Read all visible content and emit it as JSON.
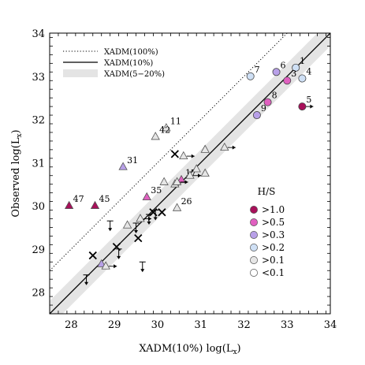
{
  "chart_data": {
    "type": "scatter",
    "title": "",
    "xlabel": "XADM(10%) log(L",
    "xlabel_sub": "x",
    "xlabel_end": ")",
    "ylabel": "Observed log(L",
    "ylabel_sub": "x",
    "ylabel_end": ")",
    "xlim": [
      27.5,
      34
    ],
    "ylim": [
      27.5,
      34
    ],
    "x_ticks": [
      28,
      29,
      30,
      31,
      32,
      33,
      34
    ],
    "y_ticks": [
      28,
      29,
      30,
      31,
      32,
      33,
      34
    ],
    "x_tick_labels": [
      "28",
      "29",
      "30",
      "31",
      "32",
      "33",
      "34"
    ],
    "y_tick_labels": [
      "28",
      "29",
      "30",
      "31",
      "32",
      "33",
      "34"
    ],
    "grid": false,
    "line_legend": {
      "placement": "top-left",
      "entries": [
        {
          "label": "XADM(100%)",
          "style": "dotted"
        },
        {
          "label": "XADM(10%)",
          "style": "solid"
        },
        {
          "label": "XADM(5−20%)",
          "style": "band"
        }
      ]
    },
    "color_legend": {
      "placement": "lower-right",
      "title": "H/S",
      "entries": [
        {
          "label": ">1.0",
          "color": "#a8105a"
        },
        {
          "label": ">0.5",
          "color": "#e060c0"
        },
        {
          "label": ">0.3",
          "color": "#b8a0e8"
        },
        {
          "label": ">0.2",
          "color": "#cfe0f5"
        },
        {
          "label": ">0.1",
          "color": "#e6e6e6"
        },
        {
          "label": "<0.1",
          "color": "#ffffff"
        }
      ]
    },
    "lines": [
      {
        "name": "XADM(100%)",
        "style": "dotted",
        "offset": 1.0
      },
      {
        "name": "XADM(10%)",
        "style": "solid",
        "offset": 0.0
      },
      {
        "name": "XADM(5−20%)",
        "style": "band",
        "offset_low": -0.3,
        "offset_high": 0.3
      }
    ],
    "points": [
      {
        "x": 33.2,
        "y": 33.2,
        "marker": "circle",
        "color": "#cfe0f5",
        "label": "1"
      },
      {
        "x": 32.75,
        "y": 33.1,
        "marker": "circle",
        "color": "#b8a0e8",
        "label": "6"
      },
      {
        "x": 33.35,
        "y": 32.95,
        "marker": "circle",
        "color": "#cfe0f5",
        "label": "4"
      },
      {
        "x": 33.0,
        "y": 32.9,
        "marker": "circle",
        "color": "#e060c0",
        "label": "3"
      },
      {
        "x": 32.15,
        "y": 33.0,
        "marker": "circle",
        "color": "#cfe0f5",
        "label": "7"
      },
      {
        "x": 32.55,
        "y": 32.4,
        "marker": "circle",
        "color": "#e060c0",
        "label": "8"
      },
      {
        "x": 32.3,
        "y": 32.1,
        "marker": "circle",
        "color": "#b8a0e8",
        "label": "9"
      },
      {
        "x": 33.35,
        "y": 32.3,
        "marker": "circle",
        "color": "#a8105a",
        "label": "5",
        "arrow": "right"
      },
      {
        "x": 30.2,
        "y": 31.8,
        "marker": "triangle",
        "color": "#e6e6e6",
        "label": "11"
      },
      {
        "x": 29.95,
        "y": 31.6,
        "marker": "triangle",
        "color": "#e6e6e6",
        "label": "42"
      },
      {
        "x": 29.2,
        "y": 30.9,
        "marker": "triangle",
        "color": "#b8a0e8",
        "label": "31"
      },
      {
        "x": 29.75,
        "y": 30.2,
        "marker": "triangle",
        "color": "#e060c0",
        "label": "35"
      },
      {
        "x": 30.55,
        "y": 30.6,
        "marker": "triangle",
        "color": "#e060c0",
        "label": "17"
      },
      {
        "x": 30.45,
        "y": 29.95,
        "marker": "triangle",
        "color": "#e6e6e6",
        "label": "26"
      },
      {
        "x": 27.95,
        "y": 30.0,
        "marker": "triangle",
        "color": "#a8105a",
        "label": "47"
      },
      {
        "x": 28.55,
        "y": 30.0,
        "marker": "triangle",
        "color": "#a8105a",
        "label": "45"
      },
      {
        "x": 31.55,
        "y": 31.35,
        "marker": "triangle",
        "color": "#e6e6e6",
        "arrow": "right"
      },
      {
        "x": 31.1,
        "y": 31.3,
        "marker": "triangle",
        "color": "#e6e6e6"
      },
      {
        "x": 30.6,
        "y": 31.15,
        "marker": "triangle",
        "color": "#e6e6e6",
        "arrow": "right"
      },
      {
        "x": 30.15,
        "y": 30.55,
        "marker": "triangle",
        "color": "#e6e6e6"
      },
      {
        "x": 30.4,
        "y": 30.5,
        "marker": "triangle",
        "color": "#e6e6e6"
      },
      {
        "x": 30.75,
        "y": 30.7,
        "marker": "triangle",
        "color": "#e6e6e6",
        "arrow": "right"
      },
      {
        "x": 30.9,
        "y": 30.85,
        "marker": "triangle",
        "color": "#e6e6e6"
      },
      {
        "x": 31.1,
        "y": 30.75,
        "marker": "triangle",
        "color": "#e6e6e6"
      },
      {
        "x": 30.45,
        "y": 30.55,
        "marker": "triangle",
        "color": "#e6e6e6",
        "arrow": "right"
      },
      {
        "x": 29.3,
        "y": 29.55,
        "marker": "triangle",
        "color": "#e6e6e6"
      },
      {
        "x": 29.6,
        "y": 29.7,
        "marker": "triangle",
        "color": "#e6e6e6",
        "arrow": "right"
      },
      {
        "x": 28.7,
        "y": 28.65,
        "marker": "triangle",
        "color": "#b8a0e8"
      },
      {
        "x": 28.8,
        "y": 28.6,
        "marker": "triangle",
        "color": "#e6e6e6",
        "arrow": "right"
      },
      {
        "x": 30.4,
        "y": 31.2,
        "marker": "x"
      },
      {
        "x": 30.1,
        "y": 29.85,
        "marker": "x"
      },
      {
        "x": 29.55,
        "y": 29.25,
        "marker": "x"
      },
      {
        "x": 29.05,
        "y": 29.05,
        "marker": "x"
      },
      {
        "x": 28.5,
        "y": 28.85,
        "marker": "x"
      },
      {
        "x": 29.9,
        "y": 29.85,
        "marker": "x"
      },
      {
        "x": 28.9,
        "y": 29.65,
        "marker": "limit"
      },
      {
        "x": 29.65,
        "y": 28.7,
        "marker": "limit"
      },
      {
        "x": 29.1,
        "y": 29.0,
        "marker": "limit"
      },
      {
        "x": 28.35,
        "y": 28.4,
        "marker": "limit"
      },
      {
        "x": 29.8,
        "y": 29.8,
        "marker": "limit"
      },
      {
        "x": 29.95,
        "y": 29.9,
        "marker": "limit"
      },
      {
        "x": 29.5,
        "y": 29.6,
        "marker": "limit"
      }
    ]
  }
}
